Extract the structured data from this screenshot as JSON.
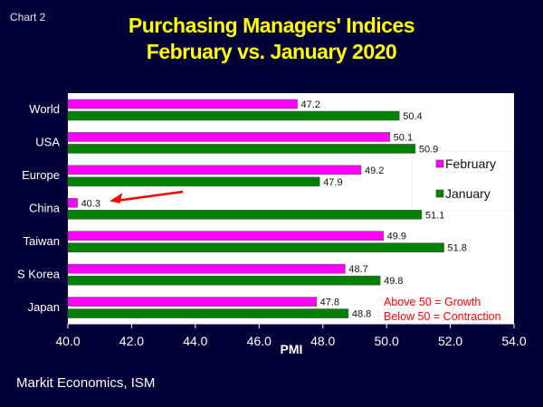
{
  "slide_label": "Chart 2",
  "source": "Markit Economics, ISM",
  "colors": {
    "background": "#020036",
    "title": "#ffff00",
    "february": "#ff00ff",
    "january": "#008000",
    "annotation": "#ff0000",
    "plot_bg": "#ffffff"
  },
  "chart_data": {
    "type": "bar",
    "orientation": "horizontal",
    "title": [
      "Purchasing Managers' Indices",
      "February vs. January 2020"
    ],
    "xlabel": "PMI",
    "ylabel": "",
    "categories": [
      "World",
      "USA",
      "Europe",
      "China",
      "Taiwan",
      "S Korea",
      "Japan"
    ],
    "series": [
      {
        "name": "February",
        "color": "#ff00ff",
        "values": [
          47.2,
          50.1,
          49.2,
          40.3,
          49.9,
          48.7,
          47.8
        ],
        "labels": [
          "47.2",
          "50.1",
          "49.2",
          "40.3",
          "49.9",
          "48.7",
          "47.8"
        ]
      },
      {
        "name": "January",
        "color": "#008000",
        "values": [
          50.4,
          50.9,
          47.9,
          51.1,
          51.8,
          49.8,
          48.8
        ],
        "labels": [
          "50.4",
          "50.9",
          "47.9",
          "51.1",
          "51.8",
          "49.8",
          "48.8"
        ]
      }
    ],
    "xlim": [
      40.0,
      54.0
    ],
    "xticks": [
      "40.0",
      "42.0",
      "44.0",
      "46.0",
      "48.0",
      "50.0",
      "52.0",
      "54.0"
    ],
    "grid": false,
    "legend_placement": "right",
    "annotations": [
      "Above 50 = Growth",
      "Below 50 = Contraction"
    ],
    "arrow_target": "China"
  }
}
